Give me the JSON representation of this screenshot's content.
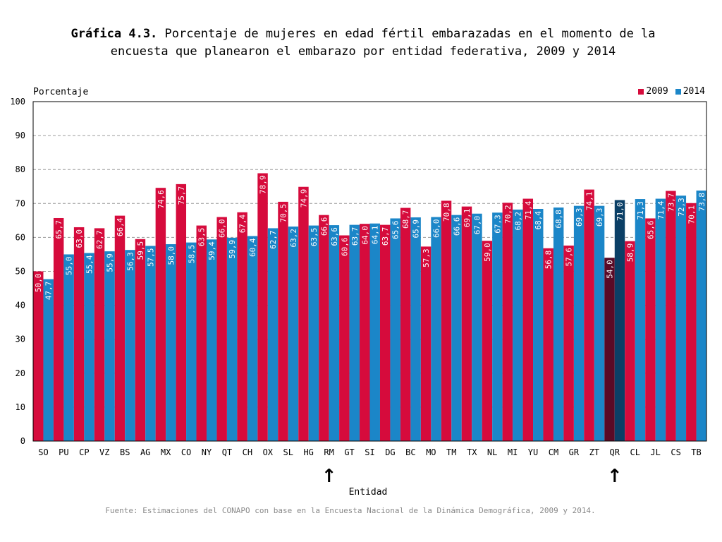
{
  "title": {
    "prefix": "Gráfica 4.3.",
    "text": "Porcentaje de mujeres en edad fértil embarazadas en el momento de la encuesta que planearon el embarazo por entidad federativa, 2009 y 2014"
  },
  "y_axis_label": "Porcentaje",
  "x_axis_label": "Entidad",
  "source": "Fuente: Estimaciones del CONAPO con base en la Encuesta Nacional de la Dinámica Demográfica, 2009 y 2014.",
  "legend": [
    {
      "name": "2009",
      "color": "#d60b3c"
    },
    {
      "name": "2014",
      "color": "#1b86c8"
    }
  ],
  "arrow_icon": "↑",
  "highlight_categories": [
    "RM",
    "QR"
  ],
  "colors": {
    "s2009": "#d60b3c",
    "s2014": "#1b86c8",
    "s2009_highlight": "#5a0a26",
    "s2014_highlight": "#0b3f66",
    "grid": "#9a9a9a"
  },
  "chart_data": {
    "type": "bar",
    "title": "Porcentaje de mujeres en edad fértil embarazadas en el momento de la encuesta que planearon el embarazo por entidad federativa, 2009 y 2014",
    "xlabel": "Entidad",
    "ylabel": "Porcentaje",
    "ylim": [
      0,
      100
    ],
    "yticks": [
      0,
      10,
      20,
      30,
      40,
      50,
      60,
      70,
      80,
      90,
      100
    ],
    "grid": true,
    "legend_position": "top-right",
    "categories": [
      "SO",
      "PU",
      "CP",
      "VZ",
      "BS",
      "AG",
      "MX",
      "CO",
      "NY",
      "QT",
      "CH",
      "OX",
      "SL",
      "HG",
      "RM",
      "GT",
      "SI",
      "DG",
      "BC",
      "MO",
      "TM",
      "TX",
      "NL",
      "MI",
      "YU",
      "CM",
      "GR",
      "ZT",
      "QR",
      "CL",
      "JL",
      "CS",
      "TB"
    ],
    "series": [
      {
        "name": "2009",
        "values": [
          50.0,
          65.7,
          63.0,
          62.7,
          66.4,
          59.5,
          74.6,
          75.7,
          63.5,
          66.0,
          67.4,
          78.9,
          70.5,
          74.9,
          66.6,
          60.6,
          64.0,
          63.7,
          68.7,
          57.3,
          70.8,
          69.1,
          59.0,
          70.2,
          71.4,
          56.8,
          57.6,
          74.1,
          54.0,
          58.9,
          65.6,
          73.7,
          70.1
        ],
        "labels": [
          "50,0",
          "65,7",
          "63,0",
          "62,7",
          "66,4",
          "59,5",
          "74,6",
          "75,7",
          "63,5",
          "66,0",
          "67,4",
          "78,9",
          "70,5",
          "74,9",
          "66,6",
          "60,6",
          "64,0",
          "63,7",
          "68,7",
          "57,3",
          "70,8",
          "69,1",
          "59,0",
          "70,2",
          "71,4",
          "56,8",
          "57,6",
          "74,1",
          "54,0",
          "58,9",
          "65,6",
          "73,7",
          "70,1"
        ]
      },
      {
        "name": "2014",
        "values": [
          47.7,
          55.0,
          55.4,
          55.9,
          56.3,
          57.5,
          58.0,
          58.5,
          59.4,
          59.9,
          60.4,
          62.7,
          63.2,
          63.5,
          63.6,
          63.7,
          64.1,
          65.6,
          65.9,
          66.0,
          66.6,
          67.0,
          67.3,
          68.2,
          68.4,
          68.8,
          69.3,
          69.3,
          71.0,
          71.3,
          71.4,
          72.3,
          73.8
        ],
        "labels": [
          "47,7",
          "55,0",
          "55,4",
          "55,9",
          "56,3",
          "57,5",
          "58,0",
          "58,5",
          "59,4",
          "59,9",
          "60,4",
          "62,7",
          "63,2",
          "63,5",
          "63,6",
          "63,7",
          "64,1",
          "65,6",
          "65,9",
          "66,0",
          "66,6",
          "67,0",
          "67,3",
          "68,2",
          "68,4",
          "68,8",
          "69,3",
          "69,3",
          "71,0",
          "71,3",
          "71,4",
          "72,3",
          "73,8"
        ]
      }
    ]
  }
}
